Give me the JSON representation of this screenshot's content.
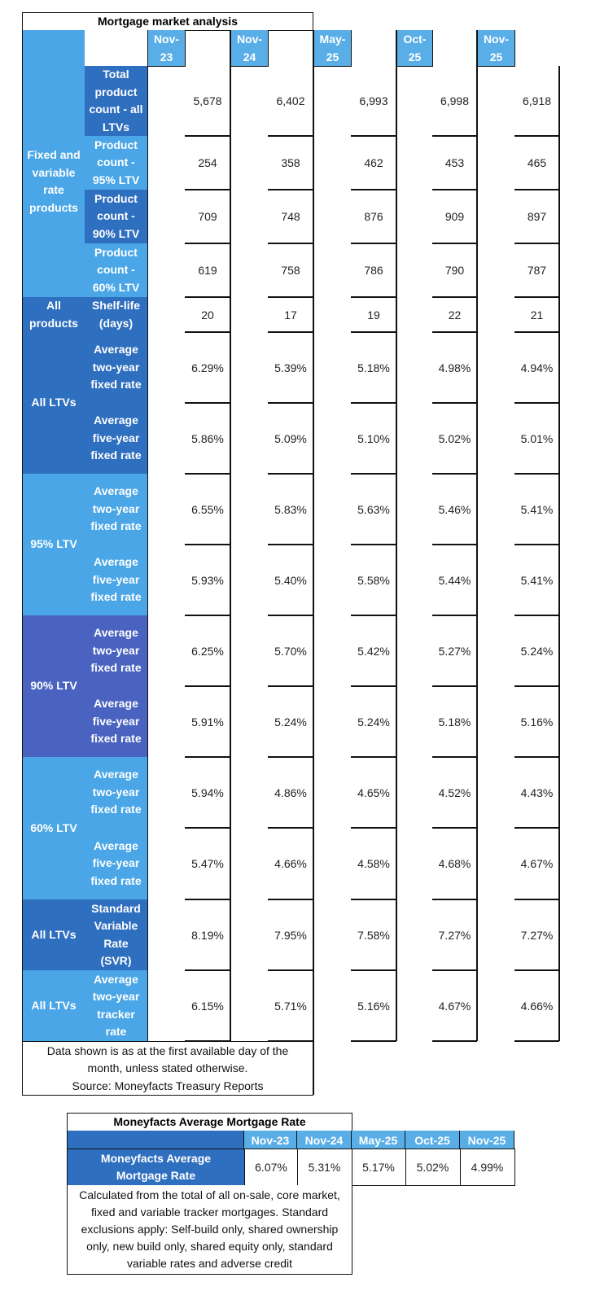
{
  "table1": {
    "title": "Mortgage market analysis",
    "columns": [
      "Nov-\n23",
      "Nov-\n24",
      "May-\n25",
      "Oct-\n25",
      "Nov-\n25"
    ],
    "column_labels": [
      {
        "line1": "Nov-",
        "line2": "23"
      },
      {
        "line1": "Nov-",
        "line2": "24"
      },
      {
        "line1": "May-",
        "line2": "25"
      },
      {
        "line1": "Oct-",
        "line2": "25"
      },
      {
        "line1": "Nov-",
        "line2": "25"
      }
    ],
    "groups": [
      {
        "label": "Fixed and variable rate products"
      },
      {
        "label": "All products"
      },
      {
        "label": "All LTVs"
      },
      {
        "label": "95% LTV"
      },
      {
        "label": "90% LTV"
      },
      {
        "label": "60% LTV"
      },
      {
        "label": "All LTVs"
      },
      {
        "label": "All LTVs"
      }
    ],
    "rows": [
      {
        "label": "Total product count - all LTVs",
        "values": [
          "5,678",
          "6,402",
          "6,993",
          "6,998",
          "6,918"
        ]
      },
      {
        "label": "Product count - 95% LTV",
        "values": [
          "254",
          "358",
          "462",
          "453",
          "465"
        ]
      },
      {
        "label": "Product count - 90% LTV",
        "values": [
          "709",
          "748",
          "876",
          "909",
          "897"
        ]
      },
      {
        "label": "Product count - 60% LTV",
        "values": [
          "619",
          "758",
          "786",
          "790",
          "787"
        ]
      },
      {
        "label": "Shelf-life (days)",
        "values": [
          "20",
          "17",
          "19",
          "22",
          "21"
        ]
      },
      {
        "label": "Average two-year fixed rate",
        "values": [
          "6.29%",
          "5.39%",
          "5.18%",
          "4.98%",
          "4.94%"
        ]
      },
      {
        "label": "Average five-year fixed rate",
        "values": [
          "5.86%",
          "5.09%",
          "5.10%",
          "5.02%",
          "5.01%"
        ]
      },
      {
        "label": "Average two-year fixed rate",
        "values": [
          "6.55%",
          "5.83%",
          "5.63%",
          "5.46%",
          "5.41%"
        ]
      },
      {
        "label": "Average five-year fixed rate",
        "values": [
          "5.93%",
          "5.40%",
          "5.58%",
          "5.44%",
          "5.41%"
        ]
      },
      {
        "label": "Average two-year fixed rate",
        "values": [
          "6.25%",
          "5.70%",
          "5.42%",
          "5.27%",
          "5.24%"
        ]
      },
      {
        "label": "Average five-year fixed rate",
        "values": [
          "5.91%",
          "5.24%",
          "5.24%",
          "5.18%",
          "5.16%"
        ]
      },
      {
        "label": "Average two-year fixed rate",
        "values": [
          "5.94%",
          "4.86%",
          "4.65%",
          "4.52%",
          "4.43%"
        ]
      },
      {
        "label": "Average five-year fixed rate",
        "values": [
          "5.47%",
          "4.66%",
          "4.58%",
          "4.68%",
          "4.67%"
        ]
      },
      {
        "label": "Standard Variable Rate (SVR)",
        "values": [
          "8.19%",
          "7.95%",
          "7.58%",
          "7.27%",
          "7.27%"
        ]
      },
      {
        "label": "Average two-year tracker rate",
        "values": [
          "6.15%",
          "5.71%",
          "5.16%",
          "4.67%",
          "4.66%"
        ]
      }
    ],
    "footnote": "Data shown is as at the first available day of the month, unless stated otherwise.",
    "source": "Source: Moneyfacts Treasury Reports"
  },
  "table2": {
    "title": "Moneyfacts Average Mortgage Rate",
    "columns": [
      "Nov-23",
      "Nov-24",
      "May-25",
      "Oct-25",
      "Nov-25"
    ],
    "row_label": "Moneyfacts Average Mortgage Rate",
    "values": [
      "6.07%",
      "5.31%",
      "5.17%",
      "5.02%",
      "4.99%"
    ],
    "note": "Calculated from the total of all on-sale, core market, fixed and variable tracker mortgages. Standard exclusions apply: Self-build only, shared ownership only, new build only, shared equity only, standard variable rates and adverse credit"
  },
  "colors": {
    "header_light_blue": "#5aaee8",
    "label_light_blue": "#4aa6e6",
    "label_dark_blue": "#2f6fbf",
    "label_purple_blue": "#4a63c0"
  }
}
